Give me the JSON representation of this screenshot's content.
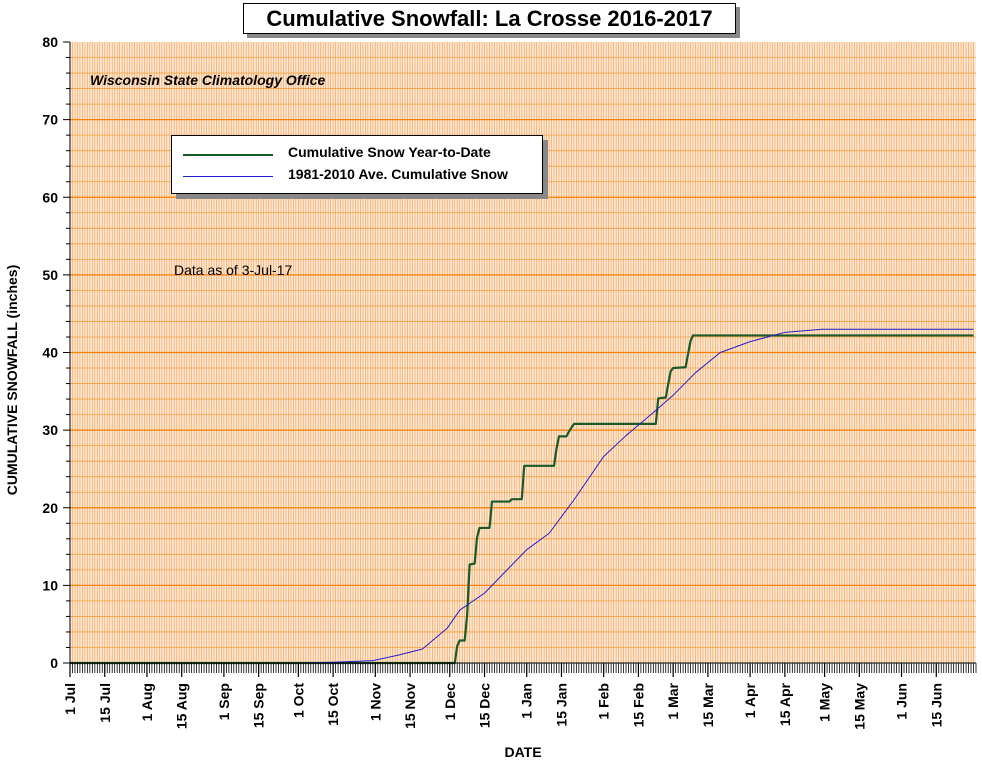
{
  "chart_data": {
    "type": "line",
    "title": "Cumulative Snowfall: La Crosse 2016-2017",
    "subtitle": "Wisconsin State Climatology Office",
    "annotation": "Data as of 3-Jul-17",
    "xlabel": "DATE",
    "ylabel": "CUMULATIVE SNOWFALL (inches)",
    "ylim": [
      0,
      80
    ],
    "yticks": [
      0,
      10,
      20,
      30,
      40,
      50,
      60,
      70,
      80
    ],
    "xlim": [
      "2016-07-01",
      "2017-06-30"
    ],
    "xtick_labels": [
      {
        "date": "2016-07-01",
        "label": "1 Jul"
      },
      {
        "date": "2016-07-15",
        "label": "15 Jul"
      },
      {
        "date": "2016-08-01",
        "label": "1 Aug"
      },
      {
        "date": "2016-08-15",
        "label": "15 Aug"
      },
      {
        "date": "2016-09-01",
        "label": "1 Sep"
      },
      {
        "date": "2016-09-15",
        "label": "15 Sep"
      },
      {
        "date": "2016-10-01",
        "label": "1 Oct"
      },
      {
        "date": "2016-10-15",
        "label": "15 Oct"
      },
      {
        "date": "2016-11-01",
        "label": "1 Nov"
      },
      {
        "date": "2016-11-15",
        "label": "15 Nov"
      },
      {
        "date": "2016-12-01",
        "label": "1 Dec"
      },
      {
        "date": "2016-12-15",
        "label": "15 Dec"
      },
      {
        "date": "2017-01-01",
        "label": "1 Jan"
      },
      {
        "date": "2017-01-15",
        "label": "15 Jan"
      },
      {
        "date": "2017-02-01",
        "label": "1 Feb"
      },
      {
        "date": "2017-02-15",
        "label": "15 Feb"
      },
      {
        "date": "2017-03-01",
        "label": "1 Mar"
      },
      {
        "date": "2017-03-15",
        "label": "15 Mar"
      },
      {
        "date": "2017-04-01",
        "label": "1 Apr"
      },
      {
        "date": "2017-04-15",
        "label": "15 Apr"
      },
      {
        "date": "2017-05-01",
        "label": "1 May"
      },
      {
        "date": "2017-05-15",
        "label": "15 May"
      },
      {
        "date": "2017-06-01",
        "label": "1 Jun"
      },
      {
        "date": "2017-06-15",
        "label": "15 Jun"
      }
    ],
    "grid": true,
    "legend_position": "upper-left",
    "series": [
      {
        "name": "Cumulative Snow Year-to-Date",
        "color": "#1a5a2a",
        "style": "step",
        "points": [
          [
            "2016-07-01",
            0
          ],
          [
            "2016-12-03",
            0
          ],
          [
            "2016-12-04",
            2.2
          ],
          [
            "2016-12-05",
            2.9
          ],
          [
            "2016-12-07",
            2.9
          ],
          [
            "2016-12-08",
            6.2
          ],
          [
            "2016-12-09",
            12.7
          ],
          [
            "2016-12-11",
            12.8
          ],
          [
            "2016-12-12",
            16.2
          ],
          [
            "2016-12-13",
            17.4
          ],
          [
            "2016-12-17",
            17.4
          ],
          [
            "2016-12-18",
            20.8
          ],
          [
            "2016-12-25",
            20.8
          ],
          [
            "2016-12-26",
            21.1
          ],
          [
            "2016-12-30",
            21.1
          ],
          [
            "2016-12-31",
            25.4
          ],
          [
            "2017-01-12",
            25.4
          ],
          [
            "2017-01-13",
            27.6
          ],
          [
            "2017-01-14",
            29.2
          ],
          [
            "2017-01-17",
            29.2
          ],
          [
            "2017-01-18",
            29.8
          ],
          [
            "2017-01-20",
            30.8
          ],
          [
            "2017-02-22",
            30.8
          ],
          [
            "2017-02-23",
            34.1
          ],
          [
            "2017-02-26",
            34.2
          ],
          [
            "2017-02-28",
            37.6
          ],
          [
            "2017-03-01",
            38.0
          ],
          [
            "2017-03-06",
            38.1
          ],
          [
            "2017-03-08",
            41.5
          ],
          [
            "2017-03-09",
            42.2
          ],
          [
            "2017-06-30",
            42.2
          ]
        ]
      },
      {
        "name": "1981-2010 Ave. Cumulative Snow",
        "color": "#2020cc",
        "style": "line",
        "points": [
          [
            "2016-07-01",
            0
          ],
          [
            "2016-10-01",
            0
          ],
          [
            "2016-10-15",
            0.1
          ],
          [
            "2016-10-31",
            0.3
          ],
          [
            "2016-11-10",
            1.0
          ],
          [
            "2016-11-20",
            1.8
          ],
          [
            "2016-11-30",
            4.5
          ],
          [
            "2016-12-05",
            6.8
          ],
          [
            "2016-12-15",
            9.0
          ],
          [
            "2016-12-25",
            12.3
          ],
          [
            "2017-01-01",
            14.6
          ],
          [
            "2017-01-10",
            16.7
          ],
          [
            "2017-01-20",
            21.0
          ],
          [
            "2017-02-01",
            26.6
          ],
          [
            "2017-02-10",
            29.3
          ],
          [
            "2017-02-20",
            32.0
          ],
          [
            "2017-03-01",
            34.5
          ],
          [
            "2017-03-10",
            37.4
          ],
          [
            "2017-03-20",
            40.0
          ],
          [
            "2017-04-01",
            41.4
          ],
          [
            "2017-04-15",
            42.6
          ],
          [
            "2017-04-30",
            43.0
          ],
          [
            "2017-05-15",
            43.0
          ],
          [
            "2017-06-30",
            43.0
          ]
        ]
      }
    ]
  }
}
